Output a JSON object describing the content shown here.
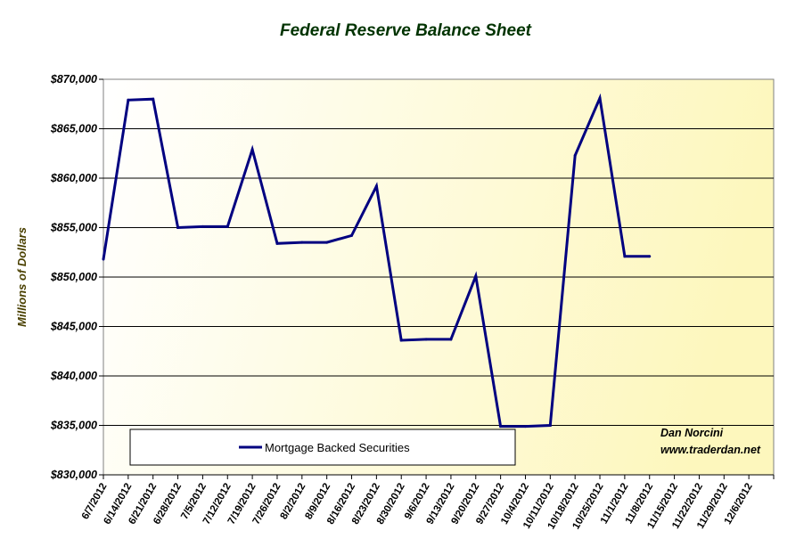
{
  "chart_data": {
    "type": "line",
    "title": "Federal Reserve Balance Sheet",
    "xlabel": "",
    "ylabel": "Millions of Dollars",
    "ylim": [
      830000,
      870000
    ],
    "yticks": [
      830000,
      835000,
      840000,
      845000,
      850000,
      855000,
      860000,
      865000,
      870000
    ],
    "ytick_labels": [
      "$830,000",
      "$835,000",
      "$840,000",
      "$845,000",
      "$850,000",
      "$855,000",
      "$860,000",
      "$865,000",
      "$870,000"
    ],
    "categories": [
      "6/7/2012",
      "6/14/2012",
      "6/21/2012",
      "6/28/2012",
      "7/5/2012",
      "7/12/2012",
      "7/19/2012",
      "7/26/2012",
      "8/2/2012",
      "8/9/2012",
      "8/16/2012",
      "8/23/2012",
      "8/30/2012",
      "9/6/2012",
      "9/13/2012",
      "9/20/2012",
      "9/27/2012",
      "10/4/2012",
      "10/11/2012",
      "10/18/2012",
      "10/25/2012",
      "11/1/2012",
      "11/8/2012",
      "11/15/2012",
      "11/22/2012",
      "11/29/2012",
      "12/6/2012"
    ],
    "series": [
      {
        "name": "Mortgage Backed Securities",
        "color": "#000080",
        "values": [
          851800,
          867900,
          868000,
          855000,
          855100,
          855100,
          862900,
          853400,
          853500,
          853500,
          854200,
          859200,
          843600,
          843700,
          843700,
          850100,
          834900,
          834900,
          835000,
          862300,
          868100,
          852100,
          852100,
          null,
          null,
          null,
          null
        ]
      }
    ],
    "grid": true,
    "legend_position": "bottom-left",
    "plot_background": "#fffcd0",
    "annotation_lines": [
      "Dan Norcini",
      "www.traderdan.net"
    ]
  }
}
